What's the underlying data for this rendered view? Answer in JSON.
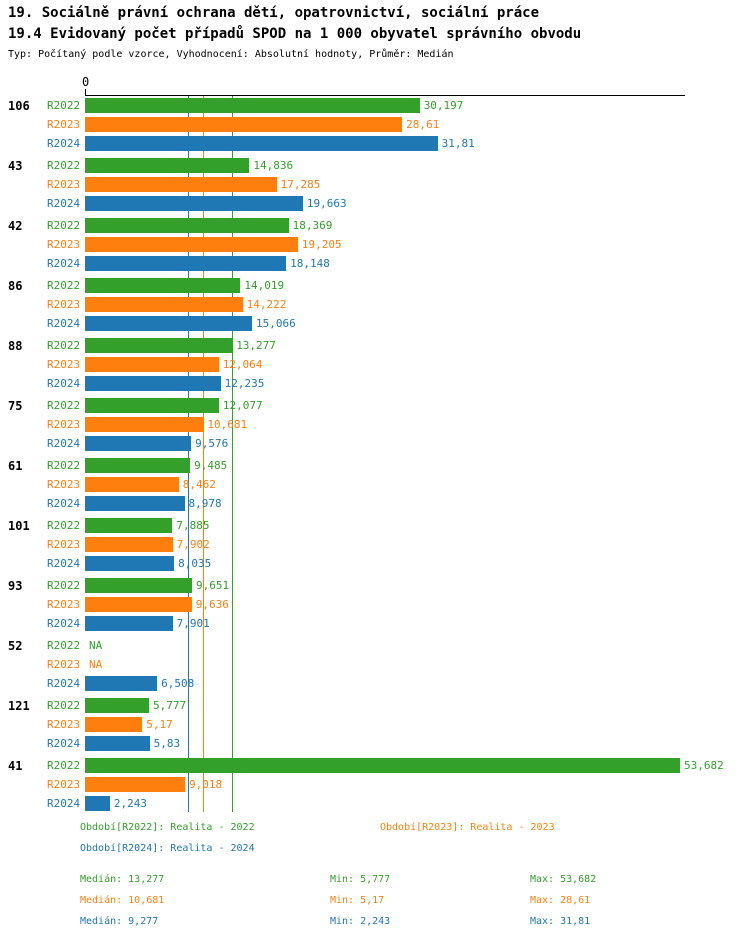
{
  "title_line1": "19. Sociálně právní ochrana dětí, opatrovnictví, sociální práce",
  "title_line2": "19.4 Evidovaný počet případů SPOD na 1 000 obyvatel správního obvodu",
  "subtitle": "Typ: Počítaný podle vzorce, Vyhodnocení: Absolutní hodnoty, Průměr: Medián",
  "x_axis_zero_label": "0",
  "chart_data": {
    "type": "bar",
    "orientation": "horizontal",
    "title": "19.4 Evidovaný počet případů SPOD na 1 000 obyvatel správního obvodu",
    "xlabel": "",
    "ylabel": "",
    "xlim": [
      0,
      54
    ],
    "grid": "median-lines-only",
    "legend_position": "bottom",
    "series": [
      {
        "name": "R2022",
        "color": "#33a02c",
        "period_label": "Období[R2022]: Realita - 2022",
        "median": 13.277,
        "min": 5.777,
        "max": 53.682
      },
      {
        "name": "R2023",
        "color": "#ff7f0e",
        "period_label": "Období[R2023]: Realita - 2023",
        "median": 10.681,
        "min": 5.17,
        "max": 28.61
      },
      {
        "name": "R2024",
        "color": "#1f77b4",
        "period_label": "Období[R2024]: Realita - 2024",
        "median": 9.277,
        "min": 2.243,
        "max": 31.81
      }
    ],
    "groups": [
      {
        "label": "106",
        "bars": [
          {
            "series": "R2022",
            "value": 30.197,
            "label": "30,197"
          },
          {
            "series": "R2023",
            "value": 28.61,
            "label": "28,61"
          },
          {
            "series": "R2024",
            "value": 31.81,
            "label": "31,81"
          }
        ]
      },
      {
        "label": "43",
        "bars": [
          {
            "series": "R2022",
            "value": 14.836,
            "label": "14,836"
          },
          {
            "series": "R2023",
            "value": 17.285,
            "label": "17,285"
          },
          {
            "series": "R2024",
            "value": 19.663,
            "label": "19,663"
          }
        ]
      },
      {
        "label": "42",
        "bars": [
          {
            "series": "R2022",
            "value": 18.369,
            "label": "18,369"
          },
          {
            "series": "R2023",
            "value": 19.205,
            "label": "19,205"
          },
          {
            "series": "R2024",
            "value": 18.148,
            "label": "18,148"
          }
        ]
      },
      {
        "label": "86",
        "bars": [
          {
            "series": "R2022",
            "value": 14.019,
            "label": "14,019"
          },
          {
            "series": "R2023",
            "value": 14.222,
            "label": "14,222"
          },
          {
            "series": "R2024",
            "value": 15.066,
            "label": "15,066"
          }
        ]
      },
      {
        "label": "88",
        "bars": [
          {
            "series": "R2022",
            "value": 13.277,
            "label": "13,277"
          },
          {
            "series": "R2023",
            "value": 12.064,
            "label": "12,064"
          },
          {
            "series": "R2024",
            "value": 12.235,
            "label": "12,235"
          }
        ]
      },
      {
        "label": "75",
        "bars": [
          {
            "series": "R2022",
            "value": 12.077,
            "label": "12,077"
          },
          {
            "series": "R2023",
            "value": 10.681,
            "label": "10,681"
          },
          {
            "series": "R2024",
            "value": 9.576,
            "label": "9,576"
          }
        ]
      },
      {
        "label": "61",
        "bars": [
          {
            "series": "R2022",
            "value": 9.485,
            "label": "9,485"
          },
          {
            "series": "R2023",
            "value": 8.462,
            "label": "8,462"
          },
          {
            "series": "R2024",
            "value": 8.978,
            "label": "8,978"
          }
        ]
      },
      {
        "label": "101",
        "bars": [
          {
            "series": "R2022",
            "value": 7.885,
            "label": "7,885"
          },
          {
            "series": "R2023",
            "value": 7.902,
            "label": "7,902"
          },
          {
            "series": "R2024",
            "value": 8.035,
            "label": "8,035"
          }
        ]
      },
      {
        "label": "93",
        "bars": [
          {
            "series": "R2022",
            "value": 9.651,
            "label": "9,651"
          },
          {
            "series": "R2023",
            "value": 9.636,
            "label": "9,636"
          },
          {
            "series": "R2024",
            "value": 7.901,
            "label": "7,901"
          }
        ]
      },
      {
        "label": "52",
        "bars": [
          {
            "series": "R2022",
            "value": null,
            "label": "NA"
          },
          {
            "series": "R2023",
            "value": null,
            "label": "NA"
          },
          {
            "series": "R2024",
            "value": 6.508,
            "label": "6,508"
          }
        ]
      },
      {
        "label": "121",
        "bars": [
          {
            "series": "R2022",
            "value": 5.777,
            "label": "5,777"
          },
          {
            "series": "R2023",
            "value": 5.17,
            "label": "5,17"
          },
          {
            "series": "R2024",
            "value": 5.83,
            "label": "5,83"
          }
        ]
      },
      {
        "label": "41",
        "bars": [
          {
            "series": "R2022",
            "value": 53.682,
            "label": "53,682"
          },
          {
            "series": "R2023",
            "value": 9.018,
            "label": "9,018"
          },
          {
            "series": "R2024",
            "value": 2.243,
            "label": "2,243"
          }
        ]
      }
    ]
  },
  "legend": {
    "periods": [
      "Období[R2022]: Realita - 2022",
      "Období[R2023]: Realita - 2023",
      "Období[R2024]: Realita - 2024"
    ],
    "stats": [
      {
        "median": "Medián: 13,277",
        "min": "Min: 5,777",
        "max": "Max: 53,682"
      },
      {
        "median": "Medián: 10,681",
        "min": "Min: 5,17",
        "max": "Max: 28,61"
      },
      {
        "median": "Medián: 9,277",
        "min": "Min: 2,243",
        "max": "Max: 31,81"
      }
    ]
  }
}
